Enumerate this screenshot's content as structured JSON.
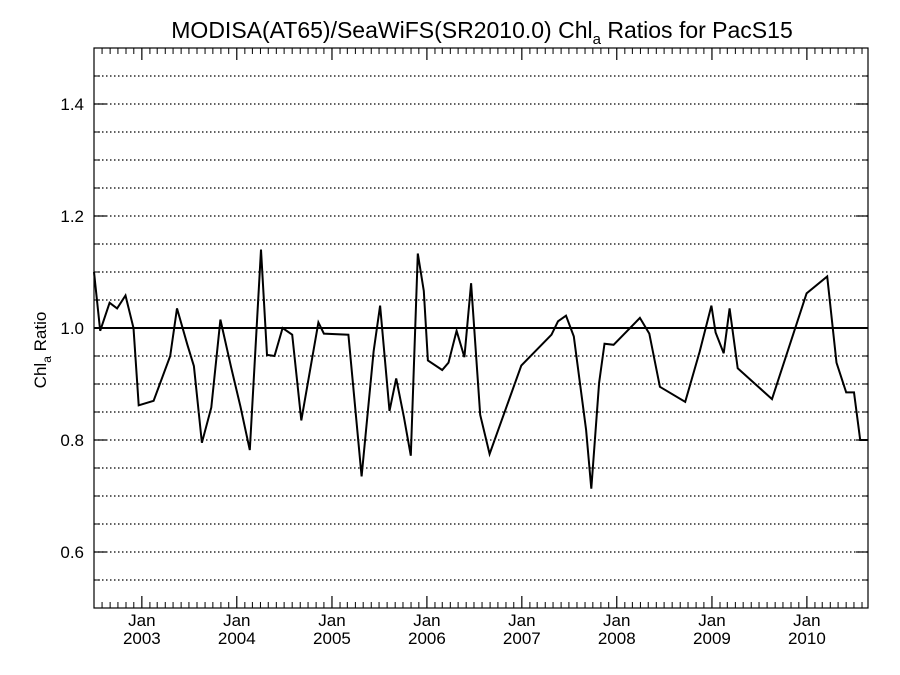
{
  "chart_data": {
    "type": "line",
    "title": {
      "prefix": "MODISA(AT65)/SeaWiFS(SR2010.0)  Chl",
      "subscript": "a",
      "suffix": " Ratios for PacS15"
    },
    "ylabel": {
      "prefix": "Chl",
      "subscript": "a",
      "suffix": " Ratio"
    },
    "xlim": [
      "2002-07-01",
      "2010-08-24"
    ],
    "ylim": [
      0.5,
      1.5
    ],
    "yticks": [
      0.6,
      0.8,
      1.0,
      1.2,
      1.4
    ],
    "ytick_labels": [
      "0.6",
      "0.8",
      "1.0",
      "1.2",
      "1.4"
    ],
    "y_minor_step": 0.05,
    "x_tick_months": [
      "Jan",
      "Jan",
      "Jan",
      "Jan",
      "Jan",
      "Jan",
      "Jan",
      "Jan"
    ],
    "x_tick_years": [
      "2003",
      "2004",
      "2005",
      "2006",
      "2007",
      "2008",
      "2009",
      "2010"
    ],
    "x_tick_dates": [
      "2003-01-01",
      "2004-01-01",
      "2005-01-01",
      "2006-01-01",
      "2007-01-01",
      "2008-01-01",
      "2009-01-01",
      "2010-01-01"
    ],
    "grid": "dotted horizontal lines",
    "reference_line": 1.0,
    "series": [
      {
        "color": "#000000",
        "points": [
          [
            "2002-07-01",
            1.1
          ],
          [
            "2002-07-25",
            0.995
          ],
          [
            "2002-08-30",
            1.045
          ],
          [
            "2002-09-28",
            1.035
          ],
          [
            "2002-10-30",
            1.058
          ],
          [
            "2002-11-30",
            1.0
          ],
          [
            "2002-12-20",
            0.862
          ],
          [
            "2003-02-15",
            0.87
          ],
          [
            "2003-04-20",
            0.95
          ],
          [
            "2003-05-16",
            1.035
          ],
          [
            "2003-06-25",
            0.97
          ],
          [
            "2003-07-20",
            0.932
          ],
          [
            "2003-08-20",
            0.795
          ],
          [
            "2003-09-25",
            0.858
          ],
          [
            "2003-10-30",
            1.015
          ],
          [
            "2003-12-10",
            0.93
          ],
          [
            "2004-01-15",
            0.86
          ],
          [
            "2004-02-20",
            0.782
          ],
          [
            "2004-04-03",
            1.14
          ],
          [
            "2004-04-26",
            0.952
          ],
          [
            "2004-05-25",
            0.95
          ],
          [
            "2004-06-25",
            1.0
          ],
          [
            "2004-08-01",
            0.988
          ],
          [
            "2004-09-05",
            0.835
          ],
          [
            "2004-11-10",
            1.01
          ],
          [
            "2004-12-01",
            0.99
          ],
          [
            "2005-03-05",
            0.988
          ],
          [
            "2005-04-25",
            0.735
          ],
          [
            "2005-06-10",
            0.958
          ],
          [
            "2005-07-05",
            1.04
          ],
          [
            "2005-08-10",
            0.852
          ],
          [
            "2005-09-05",
            0.91
          ],
          [
            "2005-10-05",
            0.84
          ],
          [
            "2005-10-31",
            0.772
          ],
          [
            "2005-11-27",
            1.133
          ],
          [
            "2005-12-20",
            1.066
          ],
          [
            "2006-01-05",
            0.942
          ],
          [
            "2006-03-01",
            0.925
          ],
          [
            "2006-03-25",
            0.938
          ],
          [
            "2006-04-25",
            0.995
          ],
          [
            "2006-05-25",
            0.948
          ],
          [
            "2006-06-20",
            1.08
          ],
          [
            "2006-07-25",
            0.845
          ],
          [
            "2006-08-30",
            0.775
          ],
          [
            "2006-12-30",
            0.933
          ],
          [
            "2007-04-25",
            0.988
          ],
          [
            "2007-05-20",
            1.012
          ],
          [
            "2007-06-20",
            1.022
          ],
          [
            "2007-07-20",
            0.985
          ],
          [
            "2007-09-05",
            0.818
          ],
          [
            "2007-09-25",
            0.713
          ],
          [
            "2007-10-25",
            0.902
          ],
          [
            "2007-11-15",
            0.972
          ],
          [
            "2007-12-20",
            0.97
          ],
          [
            "2008-03-30",
            1.018
          ],
          [
            "2008-05-05",
            0.99
          ],
          [
            "2008-06-15",
            0.895
          ],
          [
            "2008-09-20",
            0.868
          ],
          [
            "2008-11-15",
            0.958
          ],
          [
            "2008-12-30",
            1.04
          ],
          [
            "2009-01-15",
            0.992
          ],
          [
            "2009-02-15",
            0.955
          ],
          [
            "2009-03-10",
            1.035
          ],
          [
            "2009-04-10",
            0.928
          ],
          [
            "2009-08-20",
            0.873
          ],
          [
            "2009-12-31",
            1.062
          ],
          [
            "2010-03-20",
            1.092
          ],
          [
            "2010-04-25",
            0.938
          ],
          [
            "2010-06-01",
            0.885
          ],
          [
            "2010-07-01",
            0.885
          ],
          [
            "2010-07-25",
            0.8
          ],
          [
            "2010-08-24",
            0.8
          ]
        ]
      }
    ]
  }
}
